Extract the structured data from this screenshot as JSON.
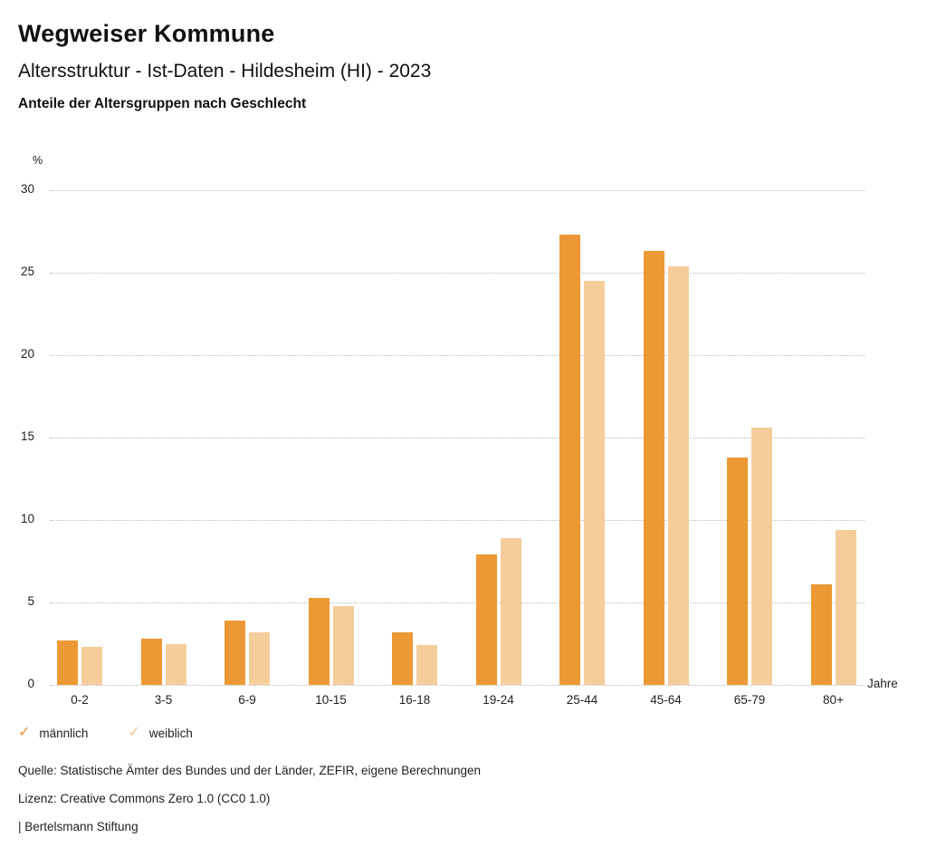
{
  "header": {
    "title": "Wegweiser Kommune",
    "subtitle": "Altersstruktur - Ist-Daten - Hildesheim (HI) - 2023",
    "chart_heading": "Anteile der Altersgruppen nach Geschlecht"
  },
  "chart_data": {
    "type": "bar",
    "title": "Anteile der Altersgruppen nach Geschlecht",
    "unit_label": "%",
    "x_unit_label": "Jahre",
    "categories": [
      "0-2",
      "3-5",
      "6-9",
      "10-15",
      "16-18",
      "19-24",
      "25-44",
      "45-64",
      "65-79",
      "80+"
    ],
    "series": [
      {
        "name": "männlich",
        "color": "#EC9935",
        "values": [
          2.7,
          2.8,
          3.9,
          5.3,
          3.2,
          7.9,
          27.3,
          26.3,
          13.8,
          6.1
        ]
      },
      {
        "name": "weiblich",
        "color": "#F5CD9B",
        "values": [
          2.3,
          2.5,
          3.2,
          4.8,
          2.4,
          8.9,
          24.5,
          25.4,
          15.6,
          9.4
        ]
      }
    ],
    "ylabel": "%",
    "xlabel": "Jahre",
    "ylim": [
      0,
      30
    ],
    "ytick_step": 5,
    "grid": "horizontal-dotted",
    "legend_position": "bottom-left"
  },
  "legend": {
    "items": [
      {
        "label": "männlich",
        "check_color": "#E8932C"
      },
      {
        "label": "weiblich",
        "check_color": "#F3C48E"
      }
    ],
    "check_glyph": "✓"
  },
  "footer": {
    "source": "Quelle: Statistische Ämter des Bundes und der Länder, ZEFIR, eigene Berechnungen",
    "license": "Lizenz: Creative Commons Zero 1.0 (CC0 1.0)",
    "brand": "| Bertelsmann Stiftung"
  }
}
